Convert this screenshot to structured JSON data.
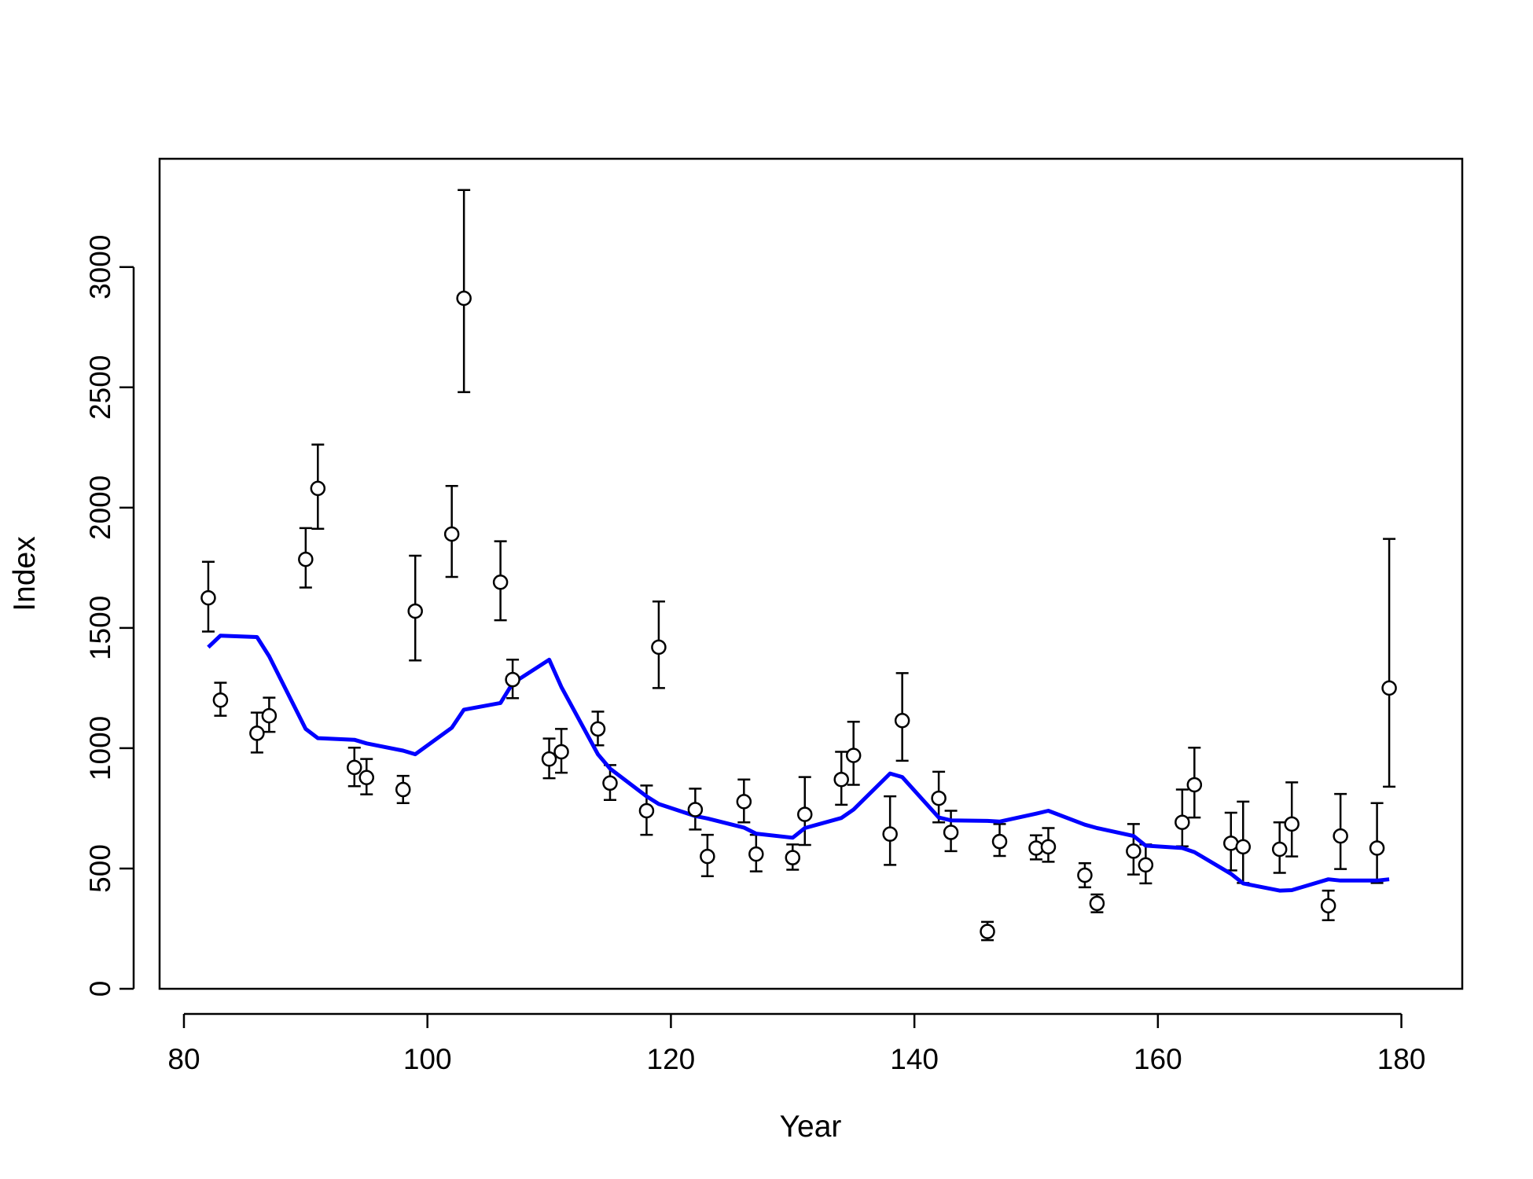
{
  "chart_data": {
    "type": "scatter",
    "title": "",
    "xlabel": "Year",
    "ylabel": "Index",
    "xlim": [
      78,
      185
    ],
    "ylim": [
      0,
      3450
    ],
    "xticks": [
      80,
      100,
      120,
      140,
      160,
      180
    ],
    "yticks": [
      0,
      500,
      1000,
      1500,
      2000,
      2500,
      3000
    ],
    "grid": false,
    "colors": {
      "fit": "#0000ff",
      "points": "#000000"
    },
    "observed": {
      "x": [
        82,
        83,
        86,
        87,
        90,
        91,
        94,
        95,
        98,
        99,
        102,
        103,
        106,
        107,
        110,
        111,
        114,
        115,
        118,
        119,
        122,
        123,
        126,
        127,
        130,
        131,
        134,
        135,
        138,
        139,
        142,
        143,
        146,
        147,
        150,
        151,
        154,
        155,
        158,
        159,
        162,
        163,
        166,
        167,
        170,
        171,
        174,
        175,
        178,
        179
      ],
      "y": [
        1625,
        1200,
        1062,
        1135,
        1785,
        2080,
        920,
        878,
        828,
        1570,
        1890,
        2870,
        1690,
        1285,
        955,
        985,
        1080,
        855,
        740,
        1420,
        745,
        550,
        778,
        560,
        545,
        725,
        870,
        970,
        643,
        1115,
        792,
        650,
        238,
        612,
        585,
        590,
        472,
        355,
        572,
        515,
        692,
        848,
        605,
        590,
        580,
        685,
        345,
        635,
        585,
        1250
      ],
      "lower": [
        1485,
        1135,
        982,
        1068,
        1668,
        1912,
        842,
        808,
        772,
        1365,
        1712,
        2480,
        1532,
        1208,
        875,
        898,
        1012,
        785,
        640,
        1250,
        662,
        468,
        692,
        488,
        495,
        598,
        765,
        848,
        515,
        948,
        692,
        572,
        202,
        552,
        538,
        528,
        422,
        318,
        475,
        438,
        592,
        712,
        492,
        440,
        482,
        550,
        285,
        498,
        440,
        840
      ],
      "upper": [
        1775,
        1272,
        1148,
        1210,
        1915,
        2262,
        1002,
        955,
        885,
        1800,
        2090,
        3320,
        1860,
        1368,
        1040,
        1080,
        1152,
        930,
        845,
        1610,
        832,
        640,
        870,
        640,
        600,
        880,
        985,
        1110,
        800,
        1312,
        902,
        740,
        278,
        685,
        638,
        668,
        522,
        392,
        685,
        600,
        828,
        1002,
        732,
        778,
        692,
        858,
        408,
        810,
        772,
        1870
      ]
    },
    "fitted": {
      "name": "",
      "x": [
        82,
        83,
        86,
        87,
        90,
        91,
        94,
        95,
        98,
        99,
        102,
        103,
        106,
        107,
        110,
        111,
        114,
        115,
        118,
        119,
        122,
        123,
        126,
        127,
        130,
        131,
        134,
        135,
        138,
        139,
        142,
        143,
        146,
        147,
        150,
        151,
        154,
        155,
        158,
        159,
        162,
        163,
        166,
        167,
        170,
        171,
        174,
        175,
        178,
        179
      ],
      "y": [
        1420,
        1468,
        1462,
        1382,
        1080,
        1042,
        1035,
        1020,
        990,
        975,
        1085,
        1160,
        1188,
        1270,
        1368,
        1255,
        975,
        915,
        800,
        768,
        718,
        708,
        670,
        645,
        628,
        668,
        710,
        745,
        895,
        880,
        712,
        700,
        698,
        695,
        728,
        740,
        682,
        668,
        635,
        595,
        585,
        568,
        478,
        438,
        408,
        410,
        455,
        450,
        450,
        455
      ]
    }
  }
}
